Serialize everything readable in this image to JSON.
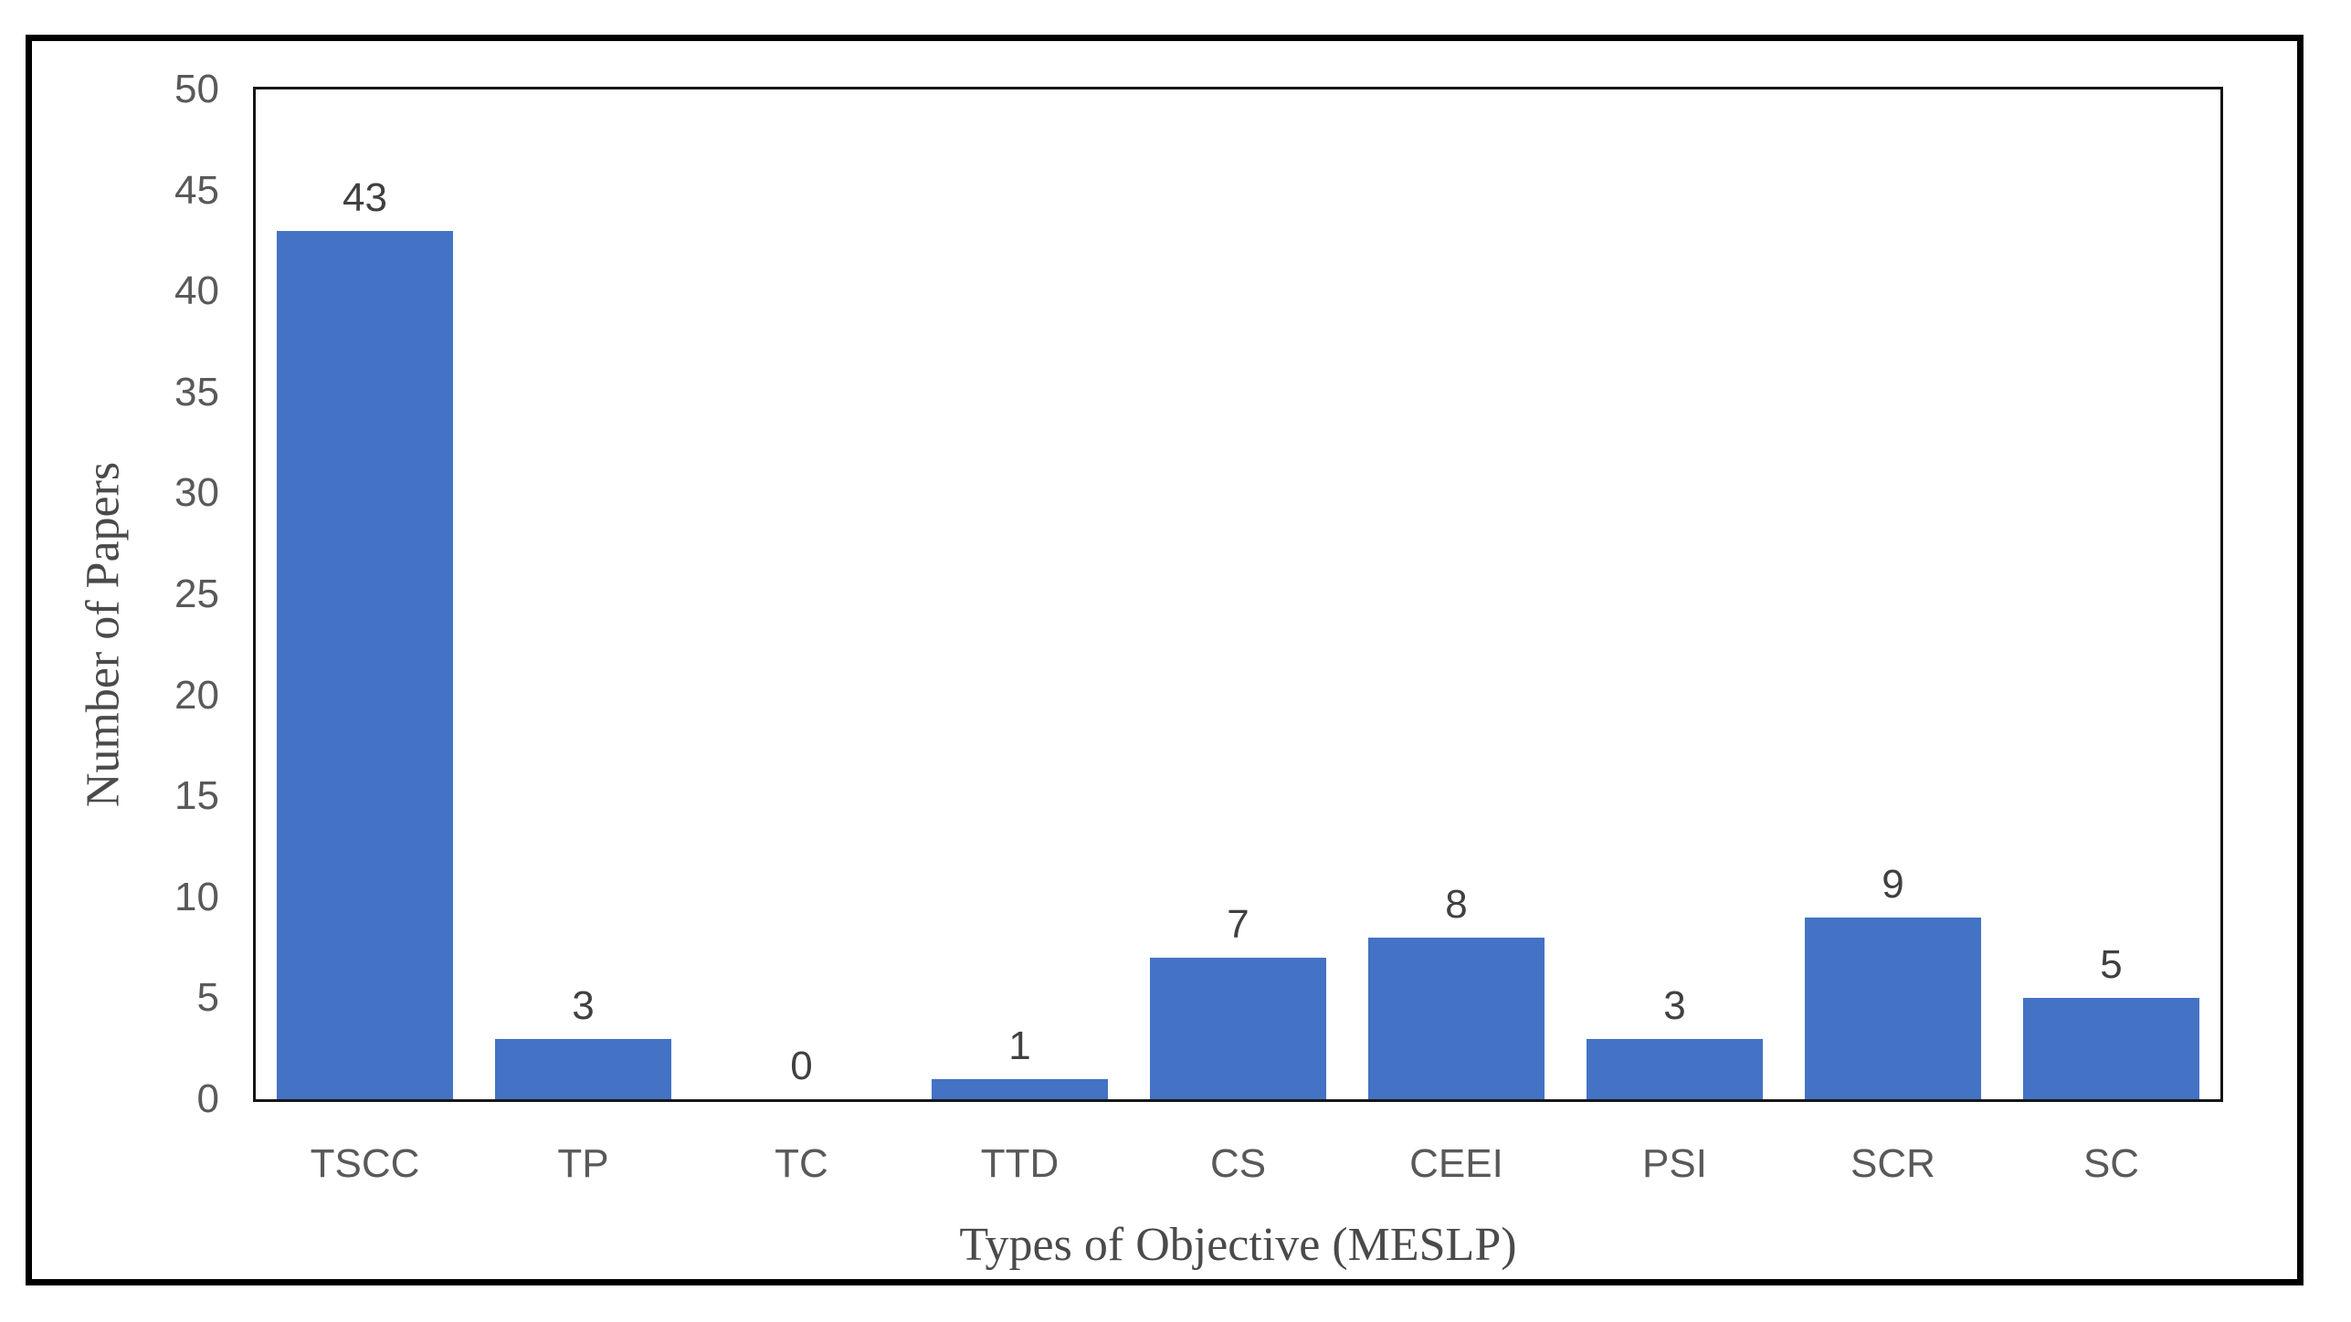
{
  "figure": {
    "background_color": "#ffffff",
    "frame_border_color": "#000000",
    "plot_border_color": "#161616"
  },
  "chart_data": {
    "type": "bar",
    "title": "",
    "categories": [
      "TSCC",
      "TP",
      "TC",
      "TTD",
      "CS",
      "CEEI",
      "PSI",
      "SCR",
      "SC"
    ],
    "values": [
      43,
      3,
      0,
      1,
      7,
      8,
      3,
      9,
      5
    ],
    "data_labels": [
      "43",
      "3",
      "0",
      "1",
      "7",
      "8",
      "3",
      "9",
      "5"
    ],
    "xlabel": "Types of Objective (MESLP)",
    "ylabel": "Number of Papers",
    "ylim": [
      0,
      50
    ],
    "yticks": [
      0,
      5,
      10,
      15,
      20,
      25,
      30,
      35,
      40,
      45,
      50
    ],
    "grid": false,
    "legend_position": "none",
    "bar_color": "#4472C4",
    "data_label_color": "#404040",
    "tick_label_color": "#595959",
    "axis_title_color": "#4a4a4a"
  }
}
